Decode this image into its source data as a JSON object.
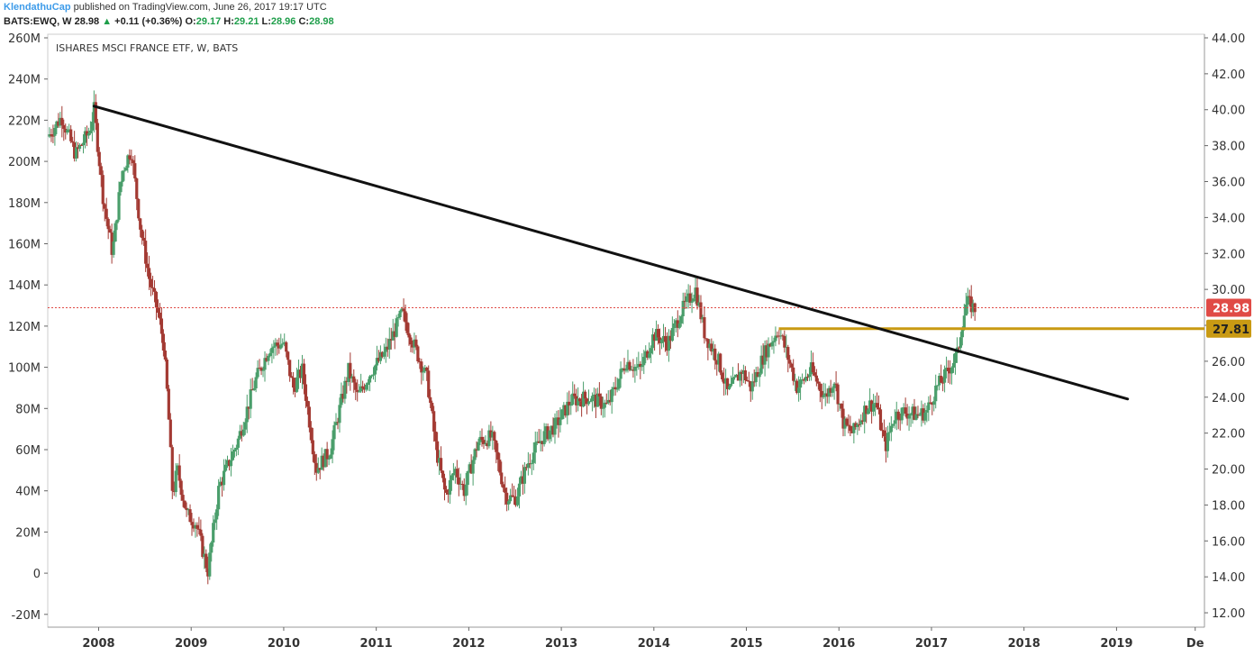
{
  "header": {
    "author": "KlendathuCap",
    "published": "published on TradingView.com, June 26, 2017 19:17 UTC",
    "symbol": "BATS:EWQ, W",
    "last": "28.98",
    "change": "+0.11 (+0.36%)",
    "open_label": "O:",
    "open": "29.17",
    "high_label": "H:",
    "high": "29.21",
    "low_label": "L:",
    "low": "28.96",
    "close_label": "C:",
    "close": "28.98"
  },
  "chart_data": {
    "type": "candlestick",
    "title": "ISHARES MSCI FRANCE ETF, W, BATS",
    "x_ticks": [
      "2008",
      "2009",
      "2010",
      "2011",
      "2012",
      "2013",
      "2014",
      "2015",
      "2016",
      "2017",
      "2018",
      "2019",
      "De"
    ],
    "xlim": [
      2007.45,
      2019.95
    ],
    "price_axis": {
      "side": "right",
      "ticks": [
        "44.00",
        "42.00",
        "40.00",
        "38.00",
        "36.00",
        "34.00",
        "32.00",
        "30.00",
        "28.00",
        "26.00",
        "24.00",
        "22.00",
        "20.00",
        "18.00",
        "16.00",
        "14.00",
        "12.00"
      ],
      "range": [
        11.2,
        44.2
      ]
    },
    "volume_axis": {
      "side": "left",
      "ticks": [
        "260M",
        "240M",
        "220M",
        "200M",
        "180M",
        "160M",
        "140M",
        "120M",
        "100M",
        "80M",
        "60M",
        "40M",
        "20M",
        "0",
        "-20M"
      ]
    },
    "anchors": [
      [
        2007.45,
        38.5
      ],
      [
        2007.6,
        39.6
      ],
      [
        2007.75,
        37.5
      ],
      [
        2007.9,
        38.8
      ],
      [
        2007.95,
        40.0
      ],
      [
        2008.05,
        35.0
      ],
      [
        2008.15,
        32.0
      ],
      [
        2008.25,
        36.5
      ],
      [
        2008.35,
        37.8
      ],
      [
        2008.45,
        33.5
      ],
      [
        2008.55,
        30.5
      ],
      [
        2008.65,
        28.5
      ],
      [
        2008.7,
        27.0
      ],
      [
        2008.75,
        23.5
      ],
      [
        2008.8,
        18.5
      ],
      [
        2008.85,
        20.0
      ],
      [
        2008.95,
        17.5
      ],
      [
        2009.05,
        17.0
      ],
      [
        2009.18,
        14.3
      ],
      [
        2009.3,
        19.0
      ],
      [
        2009.5,
        21.5
      ],
      [
        2009.7,
        25.0
      ],
      [
        2009.85,
        26.8
      ],
      [
        2010.0,
        27.0
      ],
      [
        2010.1,
        24.5
      ],
      [
        2010.2,
        25.5
      ],
      [
        2010.35,
        20.0
      ],
      [
        2010.5,
        21.0
      ],
      [
        2010.7,
        25.5
      ],
      [
        2010.8,
        24.0
      ],
      [
        2010.95,
        25.5
      ],
      [
        2011.1,
        26.5
      ],
      [
        2011.28,
        28.7
      ],
      [
        2011.4,
        27.0
      ],
      [
        2011.55,
        25.0
      ],
      [
        2011.65,
        21.0
      ],
      [
        2011.75,
        18.5
      ],
      [
        2011.85,
        20.0
      ],
      [
        2011.95,
        18.8
      ],
      [
        2012.1,
        21.5
      ],
      [
        2012.25,
        21.8
      ],
      [
        2012.4,
        18.5
      ],
      [
        2012.5,
        18.3
      ],
      [
        2012.65,
        20.5
      ],
      [
        2012.8,
        21.8
      ],
      [
        2012.95,
        22.5
      ],
      [
        2013.1,
        23.8
      ],
      [
        2013.3,
        24.0
      ],
      [
        2013.5,
        23.5
      ],
      [
        2013.7,
        26.0
      ],
      [
        2013.85,
        25.5
      ],
      [
        2014.0,
        27.5
      ],
      [
        2014.15,
        27.0
      ],
      [
        2014.3,
        28.8
      ],
      [
        2014.45,
        30.0
      ],
      [
        2014.55,
        27.5
      ],
      [
        2014.7,
        26.0
      ],
      [
        2014.8,
        24.2
      ],
      [
        2014.95,
        25.5
      ],
      [
        2015.05,
        24.5
      ],
      [
        2015.2,
        26.5
      ],
      [
        2015.35,
        27.8
      ],
      [
        2015.45,
        26.2
      ],
      [
        2015.55,
        24.5
      ],
      [
        2015.7,
        25.5
      ],
      [
        2015.85,
        24.0
      ],
      [
        2015.95,
        25.0
      ],
      [
        2016.05,
        22.5
      ],
      [
        2016.15,
        22.0
      ],
      [
        2016.3,
        23.5
      ],
      [
        2016.4,
        23.7
      ],
      [
        2016.5,
        21.2
      ],
      [
        2016.6,
        23.0
      ],
      [
        2016.7,
        23.2
      ],
      [
        2016.85,
        23.0
      ],
      [
        2016.95,
        23.2
      ],
      [
        2017.05,
        24.5
      ],
      [
        2017.15,
        25.2
      ],
      [
        2017.28,
        26.4
      ],
      [
        2017.32,
        27.8
      ],
      [
        2017.38,
        29.3
      ],
      [
        2017.47,
        28.9
      ]
    ],
    "trendline": {
      "from": [
        2007.95,
        40.2
      ],
      "to": [
        2019.12,
        23.9
      ]
    },
    "support": {
      "value": "27.81",
      "from_x": 2015.35
    },
    "last_price": "28.98",
    "colors": {
      "up": "#4a9e6b",
      "down": "#a33a33",
      "trendline": "#111111",
      "support": "#c99a13",
      "last_price_badge": "#e04b46",
      "last_price_line": "#e04b46"
    }
  }
}
